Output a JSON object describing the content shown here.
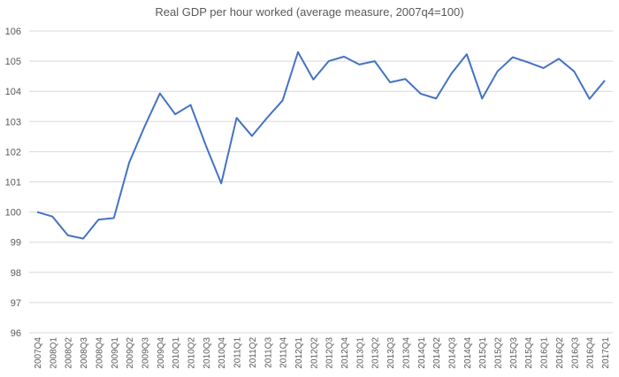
{
  "chart_data": {
    "type": "line",
    "title": "Real GDP per hour worked (average measure, 2007q4=100)",
    "xlabel": "",
    "ylabel": "",
    "ylim": [
      96,
      106
    ],
    "yticks": [
      96,
      97,
      98,
      99,
      100,
      101,
      102,
      103,
      104,
      105,
      106
    ],
    "grid": true,
    "legend": "none",
    "color": "#4472C4",
    "categories": [
      "2007Q4",
      "2008Q1",
      "2008Q2",
      "2008Q3",
      "2008Q4",
      "2009Q1",
      "2009Q2",
      "2009Q3",
      "2009Q4",
      "2010Q1",
      "2010Q2",
      "2010Q3",
      "2010Q4",
      "2011Q1",
      "2011Q2",
      "2011Q3",
      "2011Q4",
      "2012Q1",
      "2012Q2",
      "2012Q3",
      "2012Q4",
      "2013Q1",
      "2013Q2",
      "2013Q3",
      "2013Q4",
      "2014Q1",
      "2014Q2",
      "2014Q3",
      "2014Q4",
      "2015Q1",
      "2015Q2",
      "2015Q3",
      "2015Q4",
      "2016Q1",
      "2016Q2",
      "2016Q3",
      "2016Q4",
      "2017Q1"
    ],
    "values": [
      100.0,
      99.85,
      99.23,
      99.12,
      99.75,
      99.8,
      101.64,
      102.83,
      103.93,
      103.24,
      103.55,
      102.2,
      100.95,
      103.12,
      102.52,
      103.13,
      103.7,
      105.3,
      104.39,
      105.0,
      105.15,
      104.89,
      105.0,
      104.3,
      104.41,
      103.92,
      103.76,
      104.59,
      105.23,
      103.76,
      104.66,
      105.13,
      104.96,
      104.77,
      105.08,
      104.66,
      103.75,
      104.36
    ]
  }
}
